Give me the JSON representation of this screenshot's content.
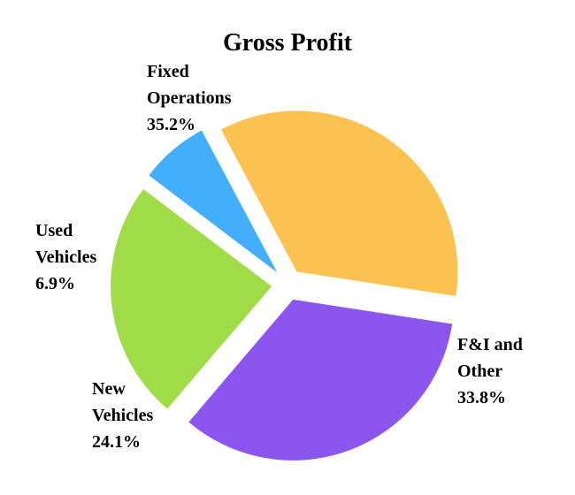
{
  "chart_data": {
    "type": "pie",
    "title": "Gross Profit",
    "slices": [
      {
        "label_lines": [
          "Fixed",
          "Operations"
        ],
        "percent_label": "35.2%",
        "value": 35.2,
        "color": "#FBC252"
      },
      {
        "label_lines": [
          "F&I and",
          "Other"
        ],
        "percent_label": "33.8%",
        "value": 33.8,
        "color": "#8C55EE"
      },
      {
        "label_lines": [
          "New",
          "Vehicles"
        ],
        "percent_label": "24.1%",
        "value": 24.1,
        "color": "#A0DB48"
      },
      {
        "label_lines": [
          "Used",
          "Vehicles"
        ],
        "percent_label": "6.9%",
        "value": 6.9,
        "color": "#42AEFC"
      }
    ],
    "exploded": true,
    "legend": "none"
  }
}
